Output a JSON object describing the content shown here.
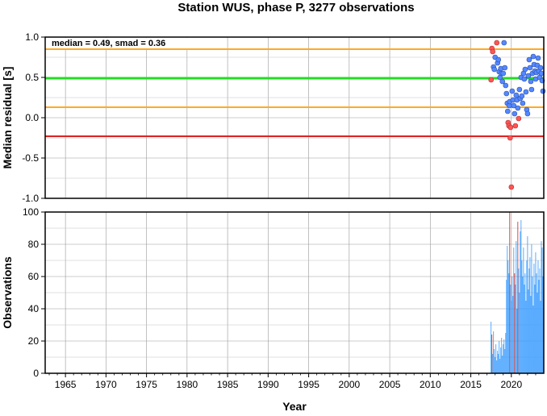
{
  "title": "Station WUS, phase P, 3277 observations",
  "colors": {
    "median_line": "#22dd22",
    "smad_lines": "#ffaa22",
    "threshold_line": "#dd2222",
    "point_fill": "#5588ff",
    "point_outlier": "#ff5555",
    "bar_fill": "#3399ff",
    "bar_outlier": "#cc2222",
    "grid": "#999999"
  },
  "chart_data": [
    {
      "type": "scatter",
      "annotation": "median = 0.49, smad = 0.36",
      "ylabel": "Median residual [s]",
      "xlim": [
        1962.5,
        2024
      ],
      "ylim": [
        -1.0,
        1.0
      ],
      "yticks": [
        "1.0",
        "0.5",
        "0.0",
        "-0.5",
        "-1.0"
      ],
      "ytick_values": [
        1.0,
        0.5,
        0.0,
        -0.5,
        -1.0
      ],
      "grid": true,
      "hlines": [
        {
          "role": "median",
          "y": 0.49,
          "color": "#22dd22"
        },
        {
          "role": "median+smad",
          "y": 0.85,
          "color": "#ffaa22"
        },
        {
          "role": "median-smad",
          "y": 0.13,
          "color": "#ffaa22"
        },
        {
          "role": "threshold",
          "y": -0.23,
          "color": "#dd2222"
        }
      ],
      "points": [
        {
          "x": 2017.5,
          "y": 0.47,
          "o": 1
        },
        {
          "x": 2017.6,
          "y": 0.86,
          "o": 1
        },
        {
          "x": 2017.7,
          "y": 0.82,
          "o": 1
        },
        {
          "x": 2017.8,
          "y": 0.63,
          "o": 0
        },
        {
          "x": 2017.9,
          "y": 0.6,
          "o": 0
        },
        {
          "x": 2018.0,
          "y": 0.75,
          "o": 0
        },
        {
          "x": 2018.2,
          "y": 0.93,
          "o": 1
        },
        {
          "x": 2018.3,
          "y": 0.68,
          "o": 0
        },
        {
          "x": 2018.4,
          "y": 0.72,
          "o": 0
        },
        {
          "x": 2018.5,
          "y": 0.57,
          "o": 0
        },
        {
          "x": 2018.6,
          "y": 0.5,
          "o": 0
        },
        {
          "x": 2018.7,
          "y": 0.61,
          "o": 0
        },
        {
          "x": 2018.8,
          "y": 0.55,
          "o": 0
        },
        {
          "x": 2018.9,
          "y": 0.45,
          "o": 0
        },
        {
          "x": 2019.0,
          "y": 0.55,
          "o": 0
        },
        {
          "x": 2019.1,
          "y": 0.93,
          "o": 0
        },
        {
          "x": 2019.2,
          "y": 0.62,
          "o": 0
        },
        {
          "x": 2019.3,
          "y": 0.4,
          "o": 0
        },
        {
          "x": 2019.4,
          "y": 0.3,
          "o": 0
        },
        {
          "x": 2019.5,
          "y": 0.18,
          "o": 0
        },
        {
          "x": 2019.55,
          "y": 0.08,
          "o": 0
        },
        {
          "x": 2019.6,
          "y": -0.06,
          "o": 1
        },
        {
          "x": 2019.7,
          "y": -0.1,
          "o": 1
        },
        {
          "x": 2019.75,
          "y": 0.15,
          "o": 0
        },
        {
          "x": 2019.8,
          "y": 0.2,
          "o": 0
        },
        {
          "x": 2019.85,
          "y": -0.25,
          "o": 1
        },
        {
          "x": 2019.9,
          "y": -0.12,
          "o": 1
        },
        {
          "x": 2020.0,
          "y": -0.86,
          "o": 1
        },
        {
          "x": 2020.1,
          "y": 0.33,
          "o": 0
        },
        {
          "x": 2020.2,
          "y": 0.22,
          "o": 0
        },
        {
          "x": 2020.3,
          "y": 0.15,
          "o": 0
        },
        {
          "x": 2020.4,
          "y": 0.05,
          "o": 0
        },
        {
          "x": 2020.5,
          "y": -0.1,
          "o": 1
        },
        {
          "x": 2020.6,
          "y": 0.28,
          "o": 0
        },
        {
          "x": 2020.7,
          "y": 0.22,
          "o": 0
        },
        {
          "x": 2020.8,
          "y": 0.12,
          "o": 0
        },
        {
          "x": 2020.9,
          "y": -0.01,
          "o": 1
        },
        {
          "x": 2021.0,
          "y": 0.35,
          "o": 0
        },
        {
          "x": 2021.1,
          "y": 0.24,
          "o": 0
        },
        {
          "x": 2021.2,
          "y": 0.5,
          "o": 0
        },
        {
          "x": 2021.3,
          "y": 0.27,
          "o": 0
        },
        {
          "x": 2021.4,
          "y": 0.18,
          "o": 0
        },
        {
          "x": 2021.5,
          "y": 0.55,
          "o": 0
        },
        {
          "x": 2021.6,
          "y": 0.48,
          "o": 0
        },
        {
          "x": 2021.7,
          "y": 0.6,
          "o": 0
        },
        {
          "x": 2021.8,
          "y": 0.32,
          "o": 0
        },
        {
          "x": 2021.9,
          "y": 0.1,
          "o": 0
        },
        {
          "x": 2022.0,
          "y": 0.05,
          "o": 0
        },
        {
          "x": 2022.1,
          "y": 0.52,
          "o": 0
        },
        {
          "x": 2022.2,
          "y": 0.72,
          "o": 0
        },
        {
          "x": 2022.3,
          "y": 0.62,
          "o": 0
        },
        {
          "x": 2022.4,
          "y": 0.45,
          "o": 0
        },
        {
          "x": 2022.5,
          "y": 0.35,
          "o": 0
        },
        {
          "x": 2022.6,
          "y": 0.55,
          "o": 0
        },
        {
          "x": 2022.7,
          "y": 0.76,
          "o": 0
        },
        {
          "x": 2022.8,
          "y": 0.66,
          "o": 0
        },
        {
          "x": 2022.9,
          "y": 0.58,
          "o": 0
        },
        {
          "x": 2023.0,
          "y": 0.48,
          "o": 0
        },
        {
          "x": 2023.1,
          "y": 0.56,
          "o": 0
        },
        {
          "x": 2023.2,
          "y": 0.65,
          "o": 0
        },
        {
          "x": 2023.3,
          "y": 0.74,
          "o": 0
        },
        {
          "x": 2023.4,
          "y": 0.58,
          "o": 0
        },
        {
          "x": 2023.5,
          "y": 0.5,
          "o": 0
        },
        {
          "x": 2023.6,
          "y": 0.62,
          "o": 0
        },
        {
          "x": 2023.7,
          "y": 0.55,
          "o": 0
        },
        {
          "x": 2023.8,
          "y": 0.46,
          "o": 0
        },
        {
          "x": 2023.9,
          "y": 0.33,
          "o": 0
        }
      ]
    },
    {
      "type": "bar",
      "ylabel": "Observations",
      "xlabel": "Year",
      "xlim": [
        1962.5,
        2024
      ],
      "ylim": [
        0,
        100
      ],
      "yticks": [
        "100",
        "80",
        "60",
        "40",
        "20",
        "0"
      ],
      "ytick_values": [
        100,
        80,
        60,
        40,
        20,
        0
      ],
      "xticks": [
        "1965",
        "1970",
        "1975",
        "1980",
        "1985",
        "1990",
        "1995",
        "2000",
        "2005",
        "2010",
        "2015",
        "2020"
      ],
      "xtick_values": [
        1965,
        1970,
        1975,
        1980,
        1985,
        1990,
        1995,
        2000,
        2005,
        2010,
        2015,
        2020
      ],
      "grid": true,
      "bars": [
        {
          "x": 2017.5,
          "y": 32,
          "o": 0
        },
        {
          "x": 2017.6,
          "y": 24,
          "o": 1
        },
        {
          "x": 2017.7,
          "y": 12,
          "o": 0
        },
        {
          "x": 2017.8,
          "y": 26,
          "o": 0
        },
        {
          "x": 2017.9,
          "y": 15,
          "o": 0
        },
        {
          "x": 2018.0,
          "y": 10,
          "o": 0
        },
        {
          "x": 2018.1,
          "y": 18,
          "o": 0
        },
        {
          "x": 2018.2,
          "y": 8,
          "o": 0
        },
        {
          "x": 2018.3,
          "y": 14,
          "o": 0
        },
        {
          "x": 2018.4,
          "y": 12,
          "o": 0
        },
        {
          "x": 2018.5,
          "y": 20,
          "o": 0
        },
        {
          "x": 2018.6,
          "y": 9,
          "o": 0
        },
        {
          "x": 2018.7,
          "y": 16,
          "o": 0
        },
        {
          "x": 2018.8,
          "y": 22,
          "o": 0
        },
        {
          "x": 2018.9,
          "y": 11,
          "o": 0
        },
        {
          "x": 2019.0,
          "y": 18,
          "o": 0
        },
        {
          "x": 2019.1,
          "y": 21,
          "o": 0
        },
        {
          "x": 2019.2,
          "y": 15,
          "o": 0
        },
        {
          "x": 2019.3,
          "y": 25,
          "o": 0
        },
        {
          "x": 2019.4,
          "y": 58,
          "o": 0
        },
        {
          "x": 2019.5,
          "y": 79,
          "o": 0
        },
        {
          "x": 2019.6,
          "y": 70,
          "o": 0
        },
        {
          "x": 2019.7,
          "y": 62,
          "o": 0
        },
        {
          "x": 2019.8,
          "y": 100,
          "o": 1
        },
        {
          "x": 2019.9,
          "y": 55,
          "o": 0
        },
        {
          "x": 2020.0,
          "y": 45,
          "o": 0
        },
        {
          "x": 2020.1,
          "y": 60,
          "o": 0
        },
        {
          "x": 2020.2,
          "y": 48,
          "o": 0
        },
        {
          "x": 2020.3,
          "y": 78,
          "o": 0
        },
        {
          "x": 2020.4,
          "y": 62,
          "o": 1
        },
        {
          "x": 2020.5,
          "y": 55,
          "o": 0
        },
        {
          "x": 2020.6,
          "y": 82,
          "o": 0
        },
        {
          "x": 2020.7,
          "y": 40,
          "o": 0
        },
        {
          "x": 2020.8,
          "y": 94,
          "o": 1
        },
        {
          "x": 2020.9,
          "y": 65,
          "o": 0
        },
        {
          "x": 2021.0,
          "y": 50,
          "o": 0
        },
        {
          "x": 2021.1,
          "y": 88,
          "o": 0
        },
        {
          "x": 2021.2,
          "y": 95,
          "o": 0
        },
        {
          "x": 2021.3,
          "y": 70,
          "o": 0
        },
        {
          "x": 2021.4,
          "y": 60,
          "o": 0
        },
        {
          "x": 2021.5,
          "y": 78,
          "o": 0
        },
        {
          "x": 2021.6,
          "y": 55,
          "o": 0
        },
        {
          "x": 2021.7,
          "y": 62,
          "o": 0
        },
        {
          "x": 2021.8,
          "y": 45,
          "o": 0
        },
        {
          "x": 2021.9,
          "y": 70,
          "o": 0
        },
        {
          "x": 2022.0,
          "y": 85,
          "o": 0
        },
        {
          "x": 2022.1,
          "y": 52,
          "o": 0
        },
        {
          "x": 2022.2,
          "y": 65,
          "o": 0
        },
        {
          "x": 2022.3,
          "y": 72,
          "o": 0
        },
        {
          "x": 2022.4,
          "y": 48,
          "o": 0
        },
        {
          "x": 2022.5,
          "y": 80,
          "o": 0
        },
        {
          "x": 2022.6,
          "y": 60,
          "o": 0
        },
        {
          "x": 2022.7,
          "y": 42,
          "o": 0
        },
        {
          "x": 2022.8,
          "y": 68,
          "o": 0
        },
        {
          "x": 2022.9,
          "y": 55,
          "o": 0
        },
        {
          "x": 2023.0,
          "y": 75,
          "o": 0
        },
        {
          "x": 2023.1,
          "y": 62,
          "o": 0
        },
        {
          "x": 2023.2,
          "y": 50,
          "o": 0
        },
        {
          "x": 2023.3,
          "y": 70,
          "o": 0
        },
        {
          "x": 2023.4,
          "y": 58,
          "o": 0
        },
        {
          "x": 2023.5,
          "y": 65,
          "o": 0
        },
        {
          "x": 2023.6,
          "y": 45,
          "o": 0
        },
        {
          "x": 2023.7,
          "y": 82,
          "o": 0
        },
        {
          "x": 2023.8,
          "y": 78,
          "o": 0
        },
        {
          "x": 2023.9,
          "y": 60,
          "o": 0
        }
      ]
    }
  ]
}
